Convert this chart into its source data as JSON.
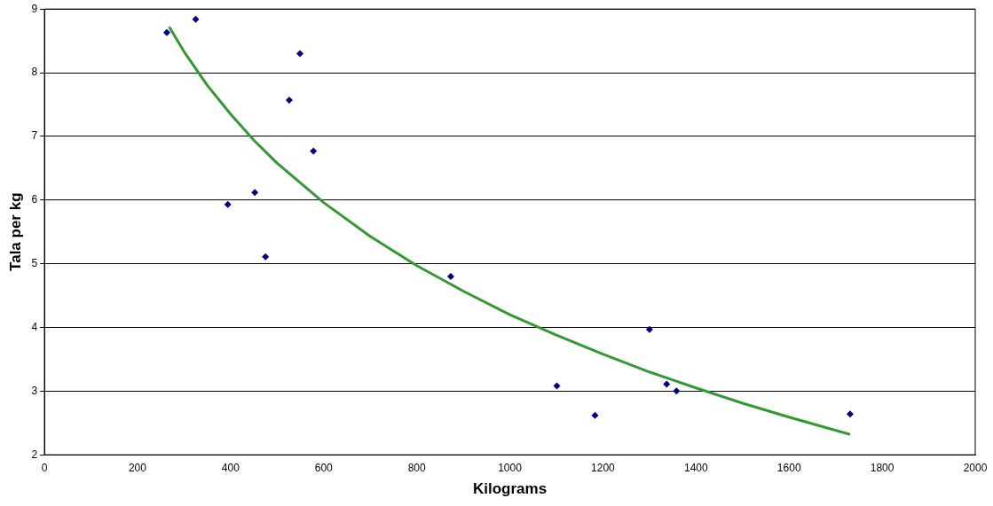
{
  "chart_data": {
    "type": "scatter",
    "xlabel": "Kilograms",
    "ylabel": "Tala per kg",
    "marker": "diamond",
    "grid": "y",
    "legend": false,
    "xlim": [
      0,
      2000
    ],
    "xticks": [
      0,
      200,
      400,
      600,
      800,
      1000,
      1200,
      1400,
      1600,
      1800,
      2000
    ],
    "ylim": [
      2,
      9
    ],
    "yticks": [
      2,
      3,
      4,
      5,
      6,
      7,
      8,
      9
    ],
    "series": [
      {
        "type": "scatter",
        "color": "#000080",
        "x": [
          263,
          325,
          549,
          526,
          578,
          452,
          394,
          475,
          873,
          1300,
          1101,
          1183,
          1337,
          1358,
          1731
        ],
        "values": [
          8.63,
          8.84,
          8.3,
          7.57,
          6.77,
          6.12,
          5.93,
          5.11,
          4.8,
          3.97,
          3.08,
          2.62,
          3.11,
          3.0,
          2.64
        ]
      },
      {
        "type": "line",
        "color": "#339933",
        "marker": "none",
        "x": [
          268,
          300,
          350,
          400,
          450,
          500,
          600,
          700,
          800,
          900,
          1000,
          1100,
          1200,
          1300,
          1400,
          1500,
          1600,
          1731
        ],
        "values": [
          8.72,
          8.33,
          7.8,
          7.35,
          6.94,
          6.58,
          5.96,
          5.43,
          4.97,
          4.57,
          4.2,
          3.88,
          3.58,
          3.3,
          3.05,
          2.81,
          2.59,
          2.32
        ]
      }
    ]
  }
}
